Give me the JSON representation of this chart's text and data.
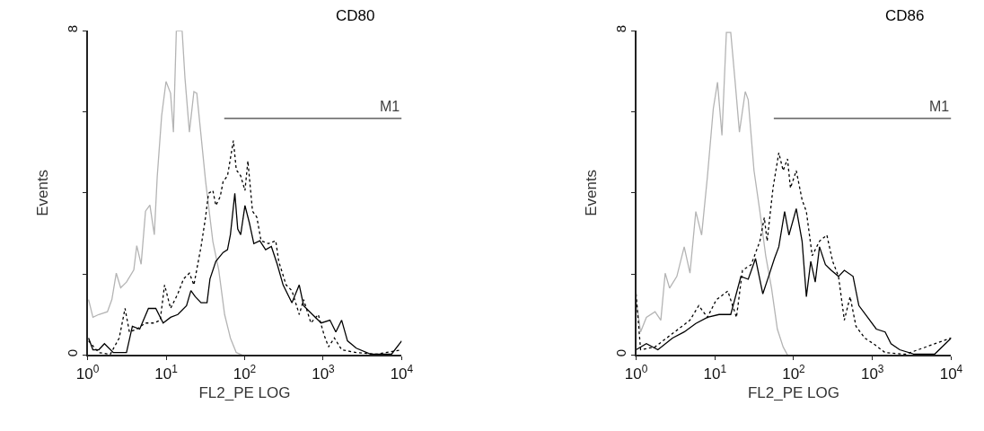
{
  "chart_data": [
    {
      "type": "line",
      "title": "CD80",
      "xlabel": "FL2_PE LOG",
      "ylabel": "Events",
      "log": "x",
      "grid": false,
      "legend": false,
      "marker": "none",
      "xlim": [
        1,
        10000
      ],
      "xticks": [
        {
          "value": 1,
          "label": "10$^{0}$"
        },
        {
          "value": 10,
          "label": "10$^{1}$"
        },
        {
          "value": 100,
          "label": "10$^{2}$"
        },
        {
          "value": 1000,
          "label": "10$^{3}$"
        },
        {
          "value": 10000,
          "label": "10$^{4}$"
        }
      ],
      "ylim": [
        0,
        8
      ],
      "yticks": [
        0,
        {
          "value": 2,
          "label": null
        },
        {
          "value": 4,
          "label": null
        },
        {
          "value": 6,
          "label": null
        },
        8
      ],
      "series": [
        {
          "type": "line",
          "name": "M1",
          "color": "#404040",
          "line_style": "solid",
          "x": [
            55,
            10000
          ],
          "values": [
            5.84,
            5.84
          ]
        },
        {
          "color": "#b4b4b4",
          "line_style": "solid",
          "x": [
            1.03,
            1.17,
            1.39,
            1.79,
            2.04,
            2.32,
            2.64,
            3.13,
            3.88,
            4.23,
            4.81,
            5.47,
            6.22,
            7.08,
            7.71,
            8.77,
            9.98,
            11.4,
            12.4,
            13.5,
            16.0,
            17.4,
            19.8,
            22.6,
            24.6,
            27.9,
            31.8,
            39.4,
            46.8,
            55.6,
            65.9,
            78.3,
            93.0
          ],
          "values": [
            1.37,
            0.93,
            1.0,
            1.07,
            1.37,
            2.02,
            1.66,
            1.8,
            2.1,
            2.7,
            2.24,
            3.55,
            3.7,
            2.97,
            4.4,
            5.9,
            6.75,
            6.46,
            5.5,
            8.0,
            8.0,
            6.83,
            5.5,
            6.5,
            6.46,
            5.4,
            4.3,
            2.8,
            2.1,
            1.0,
            0.42,
            0.06,
            0
          ]
        },
        {
          "color": "#000000",
          "line_style": "dotted",
          "x": [
            1.03,
            1.39,
            1.95,
            2.53,
            3.0,
            3.41,
            4.23,
            5.47,
            7.08,
            8.41,
            9.57,
            11.4,
            14.1,
            16.7,
            19.8,
            22.6,
            27.9,
            31.8,
            34.7,
            39.4,
            43.0,
            48.9,
            53.2,
            60.5,
            71.9,
            78.3,
            89.1,
            101,
            110,
            126,
            143,
            162,
            201,
            249,
            272,
            337,
            400,
            496,
            564,
            698,
            866,
            1030,
            1170,
            1390,
            1720,
            2640,
            4820,
            10000
          ],
          "values": [
            0.35,
            0.06,
            0.02,
            0.42,
            1.15,
            0.57,
            0.64,
            0.79,
            0.79,
            0.86,
            1.73,
            1.15,
            1.51,
            1.88,
            2.02,
            1.73,
            2.68,
            3.4,
            3.99,
            4.06,
            3.69,
            3.91,
            4.28,
            4.42,
            5.29,
            4.57,
            4.42,
            4.06,
            4.79,
            3.55,
            3.4,
            2.82,
            2.75,
            2.82,
            2.31,
            1.73,
            1.59,
            1.0,
            1.37,
            0.79,
            1.0,
            0.49,
            0.2,
            0.42,
            0.13,
            0.06,
            0.02,
            0.13
          ]
        },
        {
          "color": "#000000",
          "line_style": "solid",
          "x": [
            1.03,
            1.17,
            1.39,
            1.64,
            2.13,
            3.13,
            3.72,
            4.61,
            5.96,
            7.39,
            9.17,
            11.4,
            14.1,
            18.2,
            20.7,
            23.5,
            27.9,
            33.2,
            36.2,
            43.0,
            53.2,
            60.5,
            65.9,
            75.0,
            81.7,
            89.1,
            101,
            115,
            131,
            156,
            185,
            219,
            260,
            309,
            400,
            496,
            564,
            730,
            944,
            1220,
            1450,
            1720,
            2040,
            2640,
            4060,
            7410,
            10000
          ],
          "values": [
            0.42,
            0.13,
            0.13,
            0.28,
            0.06,
            0.06,
            0.71,
            0.64,
            1.15,
            1.15,
            0.79,
            0.93,
            1.0,
            1.22,
            1.59,
            1.44,
            1.29,
            1.29,
            1.88,
            2.31,
            2.53,
            2.6,
            2.97,
            3.99,
            3.11,
            2.97,
            3.69,
            3.26,
            2.75,
            2.82,
            2.6,
            2.68,
            2.24,
            1.73,
            1.29,
            1.73,
            1.22,
            1.0,
            0.79,
            0.86,
            0.57,
            0.86,
            0.35,
            0.17,
            0.02,
            0.02,
            0.35
          ]
        }
      ]
    },
    {
      "type": "line",
      "title": "CD86",
      "xlabel": "FL2_PE LOG",
      "ylabel": "Events",
      "log": "x",
      "grid": false,
      "legend": false,
      "marker": "none",
      "xlim": [
        1,
        10000
      ],
      "xticks": [
        {
          "value": 1,
          "label": "10$^{0}$"
        },
        {
          "value": 10,
          "label": "10$^{1}$"
        },
        {
          "value": 100,
          "label": "10$^{2}$"
        },
        {
          "value": 1000,
          "label": "10$^{3}$"
        },
        {
          "value": 10000,
          "label": "10$^{4}$"
        }
      ],
      "ylim": [
        0,
        8
      ],
      "yticks": [
        0,
        {
          "value": 2,
          "label": null
        },
        {
          "value": 4,
          "label": null
        },
        {
          "value": 6,
          "label": null
        },
        8
      ],
      "series": [
        {
          "type": "line",
          "name": "M1",
          "color": "#404040",
          "line_style": "solid",
          "x": [
            56,
            10000
          ],
          "values": [
            5.84,
            5.84
          ]
        },
        {
          "color": "#b4b4b4",
          "line_style": "solid",
          "x": [
            1.0,
            1.14,
            1.35,
            1.74,
            2.06,
            2.34,
            2.66,
            3.29,
            4.08,
            4.83,
            5.73,
            6.79,
            8.05,
            9.55,
            10.8,
            12.3,
            14.0,
            15.9,
            18.1,
            20.5,
            24.3,
            26.5,
            31.4,
            37.3,
            44.2,
            52.4,
            62.1,
            73.6,
            83.6
          ],
          "values": [
            1.36,
            0.57,
            0.93,
            1.07,
            0.86,
            2.02,
            1.65,
            1.94,
            2.67,
            2.02,
            3.54,
            2.96,
            4.41,
            6.08,
            6.73,
            5.42,
            7.96,
            7.96,
            6.73,
            5.5,
            6.5,
            6.3,
            4.55,
            3.54,
            2.45,
            1.65,
            0.64,
            0.2,
            0
          ]
        },
        {
          "color": "#000000",
          "line_style": "dotted",
          "x": [
            1.0,
            1.14,
            1.74,
            2.44,
            3.44,
            4.83,
            6.24,
            8.05,
            10.4,
            14.6,
            18.8,
            22.4,
            28.9,
            37.3,
            42.4,
            46.1,
            54.7,
            64.8,
            73.6,
            83.6,
            91.1,
            108,
            128,
            145,
            172,
            213,
            264,
            313,
            371,
            440,
            521,
            618,
            798,
            1030,
            1450,
            2630,
            10000
          ],
          "values": [
            1.51,
            0.13,
            0.2,
            0.42,
            0.64,
            0.86,
            1.22,
            0.93,
            1.36,
            1.58,
            0.93,
            2.09,
            2.23,
            2.81,
            3.39,
            2.81,
            4.12,
            4.99,
            4.55,
            4.84,
            4.12,
            4.55,
            3.83,
            3.54,
            2.45,
            2.81,
            2.96,
            2.31,
            1.94,
            0.86,
            1.44,
            0.71,
            0.42,
            0.28,
            0.06,
            0.02,
            0.42
          ]
        },
        {
          "color": "#000000",
          "line_style": "solid",
          "x": [
            1.0,
            1.35,
            1.89,
            2.9,
            4.08,
            5.73,
            8.05,
            11.3,
            15.9,
            21.4,
            26.5,
            32.8,
            40.6,
            48.1,
            57.0,
            64.8,
            76.8,
            87.2,
            108,
            128,
            145,
            165,
            188,
            213,
            253,
            300,
            371,
            440,
            568,
            673,
            869,
            1120,
            1450,
            1720,
            2220,
            3390,
            6150,
            10000
          ],
          "values": [
            0.13,
            0.28,
            0.13,
            0.42,
            0.57,
            0.78,
            0.93,
            1.0,
            1.0,
            1.94,
            1.87,
            2.38,
            1.51,
            1.94,
            2.38,
            2.67,
            3.54,
            2.96,
            3.61,
            2.81,
            1.44,
            2.31,
            1.8,
            2.67,
            2.23,
            2.09,
            1.94,
            2.09,
            1.94,
            1.22,
            0.93,
            0.64,
            0.57,
            0.28,
            0.13,
            0.02,
            0.02,
            0.42
          ]
        }
      ]
    }
  ]
}
